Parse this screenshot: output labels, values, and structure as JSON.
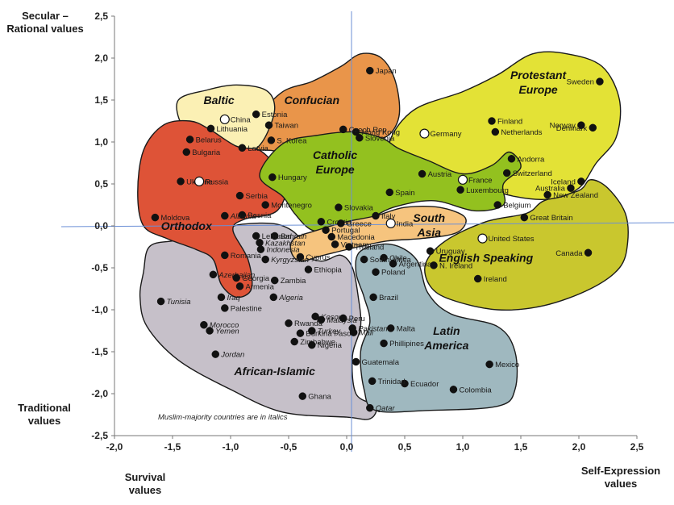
{
  "chart_data": {
    "type": "scatter",
    "xlim": [
      -2.0,
      2.5
    ],
    "ylim": [
      -2.5,
      2.5
    ],
    "x_ticks": [
      "-2,0",
      "-1,5",
      "-1,0",
      "-0,5",
      "0,0",
      "0,5",
      "1,0",
      "1,5",
      "2,0",
      "2,5"
    ],
    "y_ticks": [
      "2,5",
      "2,0",
      "1,5",
      "1,0",
      "0,5",
      "0,0",
      "-0,5",
      "-1,0",
      "-1,5",
      "-2,0",
      "-2,5"
    ],
    "axis_labels": {
      "top_left": "Secular –\nRational values",
      "bottom_left": "Traditional\nvalues",
      "bottom_x_left": "Survival\nvalues",
      "bottom_x_right": "Self-Expression\nvalues"
    },
    "note": "Muslim-majority countries are in italics",
    "regions": [
      {
        "name": "Baltic",
        "lines": [
          "Baltic"
        ],
        "color": "#fbf0b4",
        "label_at": [
          -1.1,
          1.45
        ]
      },
      {
        "name": "Confucian",
        "lines": [
          "Confucian"
        ],
        "color": "#e9954a",
        "label_at": [
          -0.3,
          1.45
        ]
      },
      {
        "name": "Protestant Europe",
        "lines": [
          "Protestant",
          "Europe"
        ],
        "color": "#e3e236",
        "label_at": [
          1.65,
          1.75
        ]
      },
      {
        "name": "Orthodox",
        "lines": [
          "Orthodox"
        ],
        "color": "#de5337",
        "label_at": [
          -1.38,
          -0.05
        ]
      },
      {
        "name": "Catholic Europe",
        "lines": [
          "Catholic",
          "Europe"
        ],
        "color": "#93c11f",
        "label_at": [
          -0.1,
          0.8
        ]
      },
      {
        "name": "South Asia",
        "lines": [
          "South",
          "Asia"
        ],
        "color": "#f6c47e",
        "label_at": [
          0.71,
          0.05
        ]
      },
      {
        "name": "English Speaking",
        "lines": [
          "English Speaking"
        ],
        "color": "#c9c72e",
        "label_at": [
          1.2,
          -0.43
        ]
      },
      {
        "name": "African-Islamic",
        "lines": [
          "African-Islamic"
        ],
        "color": "#c6c0c9",
        "label_at": [
          -0.62,
          -1.78
        ]
      },
      {
        "name": "Latin America",
        "lines": [
          "Latin",
          "America"
        ],
        "color": "#9fb8bf",
        "label_at": [
          0.86,
          -1.3
        ]
      }
    ],
    "points": [
      {
        "name": "Japan",
        "x": 0.2,
        "y": 1.85,
        "italic": false,
        "open": false
      },
      {
        "name": "Sweden",
        "x": 2.18,
        "y": 1.72,
        "italic": false,
        "open": false
      },
      {
        "name": "Estonia",
        "x": -0.78,
        "y": 1.33,
        "italic": false,
        "open": false
      },
      {
        "name": "China",
        "x": -1.05,
        "y": 1.27,
        "italic": false,
        "open": true
      },
      {
        "name": "Lithuania",
        "x": -1.17,
        "y": 1.16,
        "italic": false,
        "open": false
      },
      {
        "name": "Taiwan",
        "x": -0.67,
        "y": 1.2,
        "italic": false,
        "open": false
      },
      {
        "name": "S. Korea",
        "x": -0.65,
        "y": 1.02,
        "italic": false,
        "open": false
      },
      {
        "name": "Hong Kong",
        "x": 0.08,
        "y": 1.12,
        "italic": false,
        "open": false
      },
      {
        "name": "Czech Rep.",
        "x": -0.03,
        "y": 1.15,
        "italic": false,
        "open": false
      },
      {
        "name": "Slovenia",
        "x": 0.11,
        "y": 1.05,
        "italic": false,
        "open": false
      },
      {
        "name": "Finland",
        "x": 1.25,
        "y": 1.25,
        "italic": false,
        "open": false
      },
      {
        "name": "Netherlands",
        "x": 1.28,
        "y": 1.12,
        "italic": false,
        "open": false
      },
      {
        "name": "Norway",
        "x": 2.02,
        "y": 1.2,
        "italic": false,
        "open": false
      },
      {
        "name": "Denmark",
        "x": 2.12,
        "y": 1.17,
        "italic": false,
        "open": false
      },
      {
        "name": "Germany",
        "x": 0.67,
        "y": 1.1,
        "italic": false,
        "open": true
      },
      {
        "name": "Belarus",
        "x": -1.35,
        "y": 1.03,
        "italic": false,
        "open": false
      },
      {
        "name": "Bulgaria",
        "x": -1.38,
        "y": 0.88,
        "italic": false,
        "open": false
      },
      {
        "name": "Latvia",
        "x": -0.9,
        "y": 0.93,
        "italic": false,
        "open": false
      },
      {
        "name": "Ukraine",
        "x": -1.43,
        "y": 0.53,
        "italic": false,
        "open": false
      },
      {
        "name": "Russia",
        "x": -1.27,
        "y": 0.53,
        "italic": false,
        "open": true
      },
      {
        "name": "Hungary",
        "x": -0.64,
        "y": 0.58,
        "italic": false,
        "open": false
      },
      {
        "name": "Austria",
        "x": 0.65,
        "y": 0.62,
        "italic": false,
        "open": false
      },
      {
        "name": "France",
        "x": 1.0,
        "y": 0.55,
        "italic": false,
        "open": true
      },
      {
        "name": "Andorra",
        "x": 1.42,
        "y": 0.8,
        "italic": false,
        "open": false
      },
      {
        "name": "Switzerland",
        "x": 1.38,
        "y": 0.63,
        "italic": false,
        "open": false
      },
      {
        "name": "Iceland",
        "x": 2.02,
        "y": 0.53,
        "italic": false,
        "open": false
      },
      {
        "name": "Luxembourg",
        "x": 0.98,
        "y": 0.43,
        "italic": false,
        "open": false
      },
      {
        "name": "Australia",
        "x": 1.93,
        "y": 0.45,
        "italic": false,
        "open": false
      },
      {
        "name": "Spain",
        "x": 0.37,
        "y": 0.4,
        "italic": false,
        "open": false
      },
      {
        "name": "Moldova",
        "x": -1.65,
        "y": 0.1,
        "italic": false,
        "open": false
      },
      {
        "name": "Serbia",
        "x": -0.92,
        "y": 0.36,
        "italic": false,
        "open": false
      },
      {
        "name": "Montenegro",
        "x": -0.7,
        "y": 0.25,
        "italic": false,
        "open": false
      },
      {
        "name": "Bosnia",
        "x": -0.9,
        "y": 0.13,
        "italic": false,
        "open": false
      },
      {
        "name": "Albania",
        "x": -1.05,
        "y": 0.12,
        "italic": true,
        "open": false
      },
      {
        "name": "Slovakia",
        "x": -0.07,
        "y": 0.22,
        "italic": false,
        "open": false
      },
      {
        "name": "Belgium",
        "x": 1.3,
        "y": 0.25,
        "italic": false,
        "open": false
      },
      {
        "name": "New Zealand",
        "x": 1.73,
        "y": 0.37,
        "italic": false,
        "open": false
      },
      {
        "name": "Croatia",
        "x": -0.22,
        "y": 0.05,
        "italic": false,
        "open": false
      },
      {
        "name": "Greece",
        "x": -0.05,
        "y": 0.03,
        "italic": false,
        "open": false
      },
      {
        "name": "Italy",
        "x": 0.25,
        "y": 0.12,
        "italic": false,
        "open": false
      },
      {
        "name": "Portugal",
        "x": -0.18,
        "y": -0.05,
        "italic": false,
        "open": false
      },
      {
        "name": "India",
        "x": 0.38,
        "y": 0.03,
        "italic": false,
        "open": true
      },
      {
        "name": "Great Britain",
        "x": 1.53,
        "y": 0.1,
        "italic": false,
        "open": false
      },
      {
        "name": "United States",
        "x": 1.17,
        "y": -0.15,
        "italic": false,
        "open": true
      },
      {
        "name": "Bahrain",
        "x": -0.62,
        "y": -0.12,
        "italic": true,
        "open": false
      },
      {
        "name": "Lebanon",
        "x": -0.78,
        "y": -0.12,
        "italic": false,
        "open": false
      },
      {
        "name": "Kazakhstan",
        "x": -0.75,
        "y": -0.2,
        "italic": true,
        "open": false
      },
      {
        "name": "Macedonia",
        "x": -0.13,
        "y": -0.13,
        "italic": false,
        "open": false
      },
      {
        "name": "Indonesia",
        "x": -0.74,
        "y": -0.28,
        "italic": true,
        "open": false
      },
      {
        "name": "Vietnam",
        "x": -0.1,
        "y": -0.22,
        "italic": false,
        "open": false
      },
      {
        "name": "Cyprus",
        "x": -0.4,
        "y": -0.37,
        "italic": false,
        "open": false
      },
      {
        "name": "Thailand",
        "x": 0.02,
        "y": -0.25,
        "italic": false,
        "open": false
      },
      {
        "name": "Uruguay",
        "x": 0.72,
        "y": -0.3,
        "italic": false,
        "open": false
      },
      {
        "name": "Chile",
        "x": 0.32,
        "y": -0.38,
        "italic": false,
        "open": false
      },
      {
        "name": "South Africa",
        "x": 0.15,
        "y": -0.4,
        "italic": false,
        "open": false
      },
      {
        "name": "Canada",
        "x": 2.08,
        "y": -0.32,
        "italic": false,
        "open": false
      },
      {
        "name": "Romania",
        "x": -1.05,
        "y": -0.35,
        "italic": false,
        "open": false
      },
      {
        "name": "Kyrgyzstan",
        "x": -0.7,
        "y": -0.4,
        "italic": true,
        "open": false
      },
      {
        "name": "Ethiopia",
        "x": -0.33,
        "y": -0.52,
        "italic": false,
        "open": false
      },
      {
        "name": "N. Ireland",
        "x": 0.75,
        "y": -0.47,
        "italic": false,
        "open": false
      },
      {
        "name": "Argentina",
        "x": 0.4,
        "y": -0.45,
        "italic": false,
        "open": false
      },
      {
        "name": "Poland",
        "x": 0.25,
        "y": -0.55,
        "italic": false,
        "open": false
      },
      {
        "name": "Azerbaijan",
        "x": -1.15,
        "y": -0.58,
        "italic": true,
        "open": false
      },
      {
        "name": "Georgia",
        "x": -0.95,
        "y": -0.62,
        "italic": false,
        "open": false
      },
      {
        "name": "Zambia",
        "x": -0.62,
        "y": -0.65,
        "italic": false,
        "open": false
      },
      {
        "name": "Ireland",
        "x": 1.13,
        "y": -0.63,
        "italic": false,
        "open": false
      },
      {
        "name": "Armenia",
        "x": -0.92,
        "y": -0.72,
        "italic": false,
        "open": false
      },
      {
        "name": "Algeria",
        "x": -0.63,
        "y": -0.85,
        "italic": true,
        "open": false
      },
      {
        "name": "Tunisia",
        "x": -1.6,
        "y": -0.9,
        "italic": true,
        "open": false
      },
      {
        "name": "Iraq",
        "x": -1.08,
        "y": -0.85,
        "italic": true,
        "open": false
      },
      {
        "name": "Brazil",
        "x": 0.23,
        "y": -0.85,
        "italic": false,
        "open": false
      },
      {
        "name": "Palestine",
        "x": -1.05,
        "y": -0.98,
        "italic": false,
        "open": false
      },
      {
        "name": "Kosovo",
        "x": -0.27,
        "y": -1.08,
        "italic": true,
        "open": false
      },
      {
        "name": "Malaysia",
        "x": -0.22,
        "y": -1.12,
        "italic": true,
        "open": false
      },
      {
        "name": "Peru",
        "x": -0.03,
        "y": -1.1,
        "italic": false,
        "open": false
      },
      {
        "name": "Rwanda",
        "x": -0.5,
        "y": -1.16,
        "italic": false,
        "open": false
      },
      {
        "name": "Morocco",
        "x": -1.23,
        "y": -1.18,
        "italic": true,
        "open": false
      },
      {
        "name": "Yemen",
        "x": -1.18,
        "y": -1.25,
        "italic": true,
        "open": false
      },
      {
        "name": "Malta",
        "x": 0.38,
        "y": -1.22,
        "italic": false,
        "open": false
      },
      {
        "name": "Pakistan",
        "x": 0.05,
        "y": -1.22,
        "italic": true,
        "open": false
      },
      {
        "name": "Burkina Faso",
        "x": -0.4,
        "y": -1.28,
        "italic": false,
        "open": false
      },
      {
        "name": "Turkey",
        "x": -0.3,
        "y": -1.25,
        "italic": true,
        "open": false
      },
      {
        "name": "Mali",
        "x": 0.06,
        "y": -1.27,
        "italic": true,
        "open": false
      },
      {
        "name": "Phillipines",
        "x": 0.32,
        "y": -1.4,
        "italic": false,
        "open": false
      },
      {
        "name": "Zimbabwe",
        "x": -0.45,
        "y": -1.38,
        "italic": false,
        "open": false
      },
      {
        "name": "Nigeria",
        "x": -0.3,
        "y": -1.42,
        "italic": false,
        "open": false
      },
      {
        "name": "Jordan",
        "x": -1.13,
        "y": -1.53,
        "italic": true,
        "open": false
      },
      {
        "name": "Guatemala",
        "x": 0.08,
        "y": -1.62,
        "italic": false,
        "open": false
      },
      {
        "name": "Mexico",
        "x": 1.23,
        "y": -1.65,
        "italic": false,
        "open": false
      },
      {
        "name": "Ecuador",
        "x": 0.5,
        "y": -1.88,
        "italic": false,
        "open": false
      },
      {
        "name": "Trinidad",
        "x": 0.22,
        "y": -1.85,
        "italic": false,
        "open": false
      },
      {
        "name": "Colombia",
        "x": 0.92,
        "y": -1.95,
        "italic": false,
        "open": false
      },
      {
        "name": "Ghana",
        "x": -0.38,
        "y": -2.03,
        "italic": false,
        "open": false
      },
      {
        "name": "Qatar",
        "x": 0.2,
        "y": -2.17,
        "italic": true,
        "open": false
      }
    ]
  }
}
